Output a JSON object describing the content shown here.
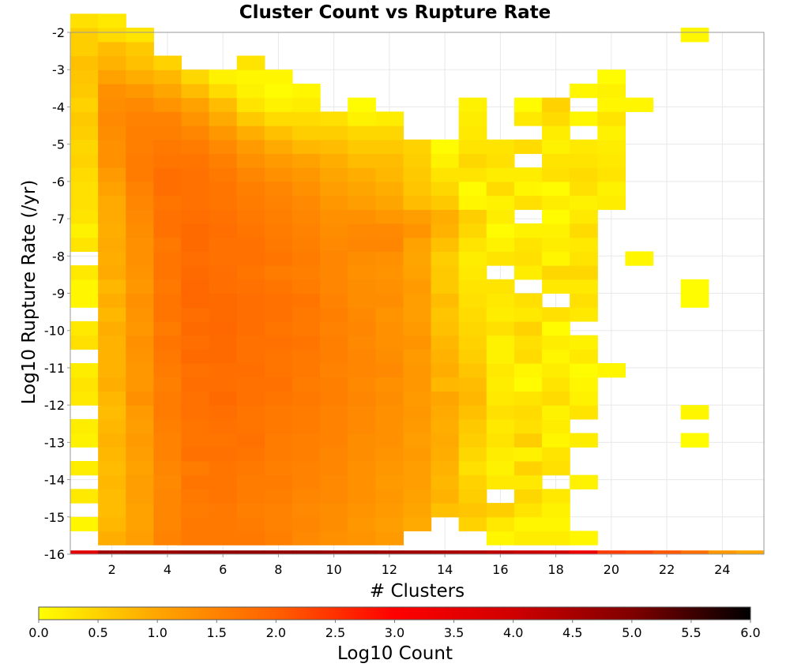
{
  "chart_data": {
    "type": "heatmap",
    "title": "Cluster Count vs Rupture Rate",
    "xlabel": "# Clusters",
    "ylabel": "Log10 Rupture Rate (/yr)",
    "xlim": [
      0.5,
      25.5
    ],
    "ylim": [
      -16,
      -2
    ],
    "xticks": [
      "2",
      "4",
      "6",
      "8",
      "10",
      "12",
      "14",
      "16",
      "18",
      "20",
      "22",
      "24"
    ],
    "yticks": [
      "-2",
      "-3",
      "-4",
      "-5",
      "-6",
      "-7",
      "-8",
      "-9",
      "-10",
      "-11",
      "-12",
      "-13",
      "-14",
      "-15",
      "-16"
    ],
    "grid": true,
    "colorbar": {
      "label": "Log10 Count",
      "range": [
        0,
        6
      ],
      "ticks": [
        "0.0",
        "0.5",
        "1.0",
        "1.5",
        "2.0",
        "2.5",
        "3.0",
        "3.5",
        "4.0",
        "4.5",
        "5.0",
        "5.5",
        "6.0"
      ],
      "colors": [
        "#ffff00",
        "#ffa500",
        "#ff6000",
        "#ff0000",
        "#d00000",
        "#800000",
        "#000000"
      ]
    },
    "bin_height": 0.375,
    "bin_width": 1,
    "columns": [
      {
        "x": 1,
        "y_start": -15.375,
        "values": [
          0.1,
          0,
          0.25,
          0,
          0.2,
          0,
          0.15,
          0.2,
          0,
          0.25,
          0.3,
          0.2,
          0,
          0.35,
          0.25,
          0,
          0.1,
          0.1,
          0.25,
          0,
          0.3,
          0.15,
          0.3,
          0.35,
          0.35,
          0.4,
          0.5,
          0.45,
          0.55,
          0.6,
          0.5,
          0.6,
          0.65,
          0.7,
          0.55,
          0.55,
          0.35
        ]
      },
      {
        "x": 2,
        "y_start": -15.75,
        "values": [
          0.9,
          0.8,
          0.75,
          0.75,
          0.8,
          0.75,
          0.8,
          0.85,
          0.8,
          0.75,
          0.8,
          0.9,
          0.85,
          0.85,
          0.85,
          0.9,
          0.8,
          0.9,
          0.8,
          0.95,
          0.9,
          0.95,
          0.9,
          0.95,
          0.95,
          1.05,
          1.15,
          1.3,
          1.3,
          1.35,
          1.4,
          1.35,
          1.3,
          1.05,
          0.85,
          0.75,
          0.4,
          0.25
        ]
      },
      {
        "x": 3,
        "y_start": -15.75,
        "values": [
          1.1,
          1.05,
          1.05,
          1.1,
          1.1,
          1.05,
          1.1,
          1.15,
          1.1,
          1.15,
          1.3,
          1.2,
          1.2,
          1.25,
          1.3,
          1.2,
          1.25,
          1.3,
          1.2,
          1.25,
          1.3,
          1.3,
          1.35,
          1.4,
          1.45,
          1.5,
          1.6,
          1.6,
          1.55,
          1.55,
          1.5,
          1.4,
          1.2,
          0.9,
          0.7,
          0.6,
          0.3
        ]
      },
      {
        "x": 4,
        "y_start": -15.75,
        "values": [
          1.5,
          1.45,
          1.45,
          1.45,
          1.4,
          1.45,
          1.5,
          1.5,
          1.55,
          1.6,
          1.6,
          1.55,
          1.6,
          1.65,
          1.7,
          1.6,
          1.7,
          1.7,
          1.65,
          1.7,
          1.7,
          1.65,
          1.75,
          1.75,
          1.7,
          1.8,
          1.8,
          1.7,
          1.65,
          1.55,
          1.5,
          1.25,
          1.0,
          0.8,
          0.5
        ]
      },
      {
        "x": 5,
        "y_start": -15.75,
        "values": [
          1.65,
          1.65,
          1.6,
          1.65,
          1.7,
          1.6,
          1.75,
          1.7,
          1.7,
          1.75,
          1.75,
          1.8,
          1.75,
          1.85,
          1.8,
          1.85,
          1.8,
          1.9,
          1.9,
          1.85,
          1.8,
          1.85,
          1.85,
          1.8,
          1.75,
          1.75,
          1.75,
          1.7,
          1.6,
          1.45,
          1.25,
          1.05,
          0.75,
          0.45
        ]
      },
      {
        "x": 6,
        "y_start": -15.75,
        "values": [
          1.65,
          1.65,
          1.65,
          1.7,
          1.7,
          1.7,
          1.75,
          1.7,
          1.75,
          1.8,
          1.85,
          1.8,
          1.8,
          1.85,
          1.85,
          1.9,
          1.85,
          1.85,
          1.8,
          1.8,
          1.75,
          1.75,
          1.8,
          1.75,
          1.7,
          1.7,
          1.65,
          1.55,
          1.4,
          1.2,
          0.95,
          0.75,
          0.4,
          0.15
        ]
      },
      {
        "x": 7,
        "y_start": -15.75,
        "values": [
          1.65,
          1.6,
          1.55,
          1.6,
          1.6,
          1.65,
          1.7,
          1.75,
          1.7,
          1.7,
          1.75,
          1.75,
          1.8,
          1.75,
          1.75,
          1.8,
          1.8,
          1.8,
          1.75,
          1.7,
          1.75,
          1.75,
          1.7,
          1.65,
          1.6,
          1.55,
          1.45,
          1.3,
          1.15,
          0.9,
          0.6,
          0.3,
          0.15,
          0.1,
          0.3
        ]
      },
      {
        "x": 8,
        "y_start": -15.75,
        "values": [
          1.55,
          1.5,
          1.5,
          1.55,
          1.6,
          1.55,
          1.6,
          1.6,
          1.65,
          1.65,
          1.7,
          1.75,
          1.7,
          1.7,
          1.75,
          1.7,
          1.75,
          1.75,
          1.7,
          1.6,
          1.7,
          1.65,
          1.6,
          1.55,
          1.5,
          1.45,
          1.3,
          1.15,
          0.95,
          0.7,
          0.4,
          0.15,
          0.05,
          0.1
        ]
      },
      {
        "x": 9,
        "y_start": -15.75,
        "values": [
          1.4,
          1.45,
          1.4,
          1.45,
          1.5,
          1.5,
          1.55,
          1.55,
          1.6,
          1.6,
          1.65,
          1.6,
          1.65,
          1.65,
          1.7,
          1.65,
          1.65,
          1.7,
          1.6,
          1.55,
          1.6,
          1.55,
          1.5,
          1.45,
          1.4,
          1.3,
          1.2,
          1.05,
          0.8,
          0.55,
          0.4,
          0.2,
          0.1
        ]
      },
      {
        "x": 10,
        "y_start": -15.75,
        "values": [
          1.3,
          1.35,
          1.35,
          1.4,
          1.4,
          1.45,
          1.45,
          1.5,
          1.5,
          1.5,
          1.55,
          1.55,
          1.5,
          1.55,
          1.55,
          1.5,
          1.55,
          1.5,
          1.45,
          1.45,
          1.45,
          1.4,
          1.35,
          1.3,
          1.2,
          1.1,
          1.0,
          0.9,
          0.75,
          0.55,
          0.35
        ]
      },
      {
        "x": 11,
        "y_start": -15.75,
        "values": [
          1.25,
          1.2,
          1.25,
          1.3,
          1.3,
          1.3,
          1.35,
          1.35,
          1.4,
          1.4,
          1.45,
          1.4,
          1.45,
          1.45,
          1.4,
          1.45,
          1.4,
          1.35,
          1.35,
          1.3,
          1.35,
          1.45,
          1.4,
          1.3,
          1.1,
          1.0,
          0.9,
          0.75,
          0.6,
          0.45,
          0.15,
          0.05
        ]
      },
      {
        "x": 12,
        "y_start": -15.75,
        "values": [
          1.15,
          1.1,
          1.15,
          1.2,
          1.15,
          1.2,
          1.25,
          1.3,
          1.3,
          1.3,
          1.35,
          1.3,
          1.4,
          1.35,
          1.3,
          1.3,
          1.25,
          1.35,
          1.3,
          1.25,
          1.3,
          1.45,
          1.4,
          1.2,
          1.0,
          0.9,
          0.8,
          0.75,
          0.6,
          0.45,
          0.2
        ]
      },
      {
        "x": 13,
        "y_start": -15.375,
        "values": [
          0.95,
          1.0,
          1.05,
          1.1,
          1.1,
          1.15,
          1.1,
          1.15,
          1.2,
          1.15,
          1.2,
          1.2,
          1.15,
          1.25,
          1.15,
          1.1,
          1.1,
          1.15,
          1.05,
          1.0,
          1.05,
          1.25,
          1.1,
          0.75,
          0.65,
          0.6,
          0.55,
          0.5
        ]
      },
      {
        "x": 14,
        "y_start": -15.0,
        "values": [
          0.7,
          0.85,
          0.8,
          0.85,
          0.9,
          0.95,
          0.9,
          0.95,
          1.0,
          0.8,
          0.9,
          0.85,
          0.8,
          0.7,
          0.65,
          0.75,
          0.6,
          0.6,
          0.55,
          0.7,
          0.85,
          0.9,
          0.6,
          0.45,
          0.3,
          0.15,
          0.05
        ]
      },
      {
        "x": 15,
        "y_start": -15.375,
        "values": [
          0.5,
          0.65,
          0.55,
          0.5,
          0.35,
          0.45,
          0.55,
          0.6,
          0.7,
          0.8,
          0.75,
          0.65,
          0.55,
          0.5,
          0.45,
          0.4,
          0.35,
          0.3,
          0.25,
          0.2,
          0.3,
          0.45,
          0.55,
          0.1,
          0.05,
          0.3,
          0.45,
          0.3,
          0.25,
          0.2,
          0.15
        ]
      },
      {
        "x": 16,
        "y_start": -15.75,
        "values": [
          0.1,
          0.25,
          0.55,
          0,
          0.25,
          0.15,
          0.2,
          0.3,
          0.25,
          0.35,
          0.25,
          0.2,
          0.25,
          0.15,
          0.15,
          0.35,
          0.2,
          0.25,
          0.3,
          0,
          0.3,
          0.15,
          0.05,
          0.2,
          0.15,
          0.4,
          0.2,
          0.35,
          0.3
        ]
      },
      {
        "x": 17,
        "y_start": -15.75,
        "values": [
          0.2,
          0.1,
          0.3,
          0.45,
          0.25,
          0.5,
          0.15,
          0.55,
          0.35,
          0.4,
          0.3,
          0.05,
          0.1,
          0.4,
          0.35,
          0.5,
          0.25,
          0.35,
          0,
          0.2,
          0.35,
          0.3,
          0.15,
          0,
          0.35,
          0.1,
          0.2,
          0,
          0.4,
          0,
          0.25,
          0.05
        ]
      },
      {
        "x": 18,
        "y_start": -15.75,
        "values": [
          0.2,
          0.1,
          0.15,
          0.25,
          0,
          0.35,
          0.3,
          0.1,
          0.2,
          0.15,
          0.4,
          0.3,
          0.2,
          0.1,
          0.2,
          0.05,
          0.35,
          0,
          0.25,
          0.45,
          0.1,
          0.2,
          0.15,
          0.05,
          0.2,
          0.05,
          0.35,
          0.3,
          0.15,
          0.2,
          0.4,
          0.5
        ]
      },
      {
        "x": 19,
        "y_start": -15.75,
        "values": [
          0.1,
          0,
          0,
          0,
          0.15,
          0,
          0,
          0.2,
          0,
          0.3,
          0.15,
          0.1,
          0.05,
          0.25,
          0.15,
          0,
          0.25,
          0.35,
          0.25,
          0.45,
          0.3,
          0.25,
          0.4,
          0.25,
          0.15,
          0.35,
          0.4,
          0.3,
          0.25,
          0,
          0.1,
          0,
          0.1
        ]
      },
      {
        "x": 20,
        "y_start": -11.25,
        "values": [
          0.1,
          0,
          0,
          0,
          0,
          0,
          0,
          0,
          0,
          0,
          0,
          0,
          0.2,
          0.15,
          0.3,
          0.25,
          0.2,
          0.15,
          0.3,
          0.1,
          0.15,
          0.05
        ]
      },
      {
        "x": 21,
        "y_start": -8.25,
        "values": [
          0.1,
          0,
          0,
          0,
          0,
          0,
          0,
          0,
          0,
          0,
          0,
          0.1
        ]
      },
      {
        "x": 23,
        "y_start": -13.125,
        "values": [
          0.05,
          0,
          0.1,
          0,
          0,
          0,
          0,
          0,
          0,
          0,
          0.05,
          0.05,
          0,
          0,
          0,
          0,
          0,
          0,
          0,
          0,
          0,
          0,
          0,
          0,
          0,
          0,
          0,
          0,
          0,
          0.1
        ]
      }
    ],
    "bottom_row": {
      "y": -15.9,
      "x": [
        1,
        2,
        3,
        4,
        5,
        6,
        7,
        8,
        9,
        10,
        11,
        12,
        13,
        14,
        15,
        16,
        17,
        18,
        19,
        20,
        21,
        22,
        23,
        24,
        25
      ],
      "values": [
        3.6,
        4.6,
        4.7,
        4.7,
        4.8,
        4.8,
        4.8,
        4.75,
        4.8,
        4.7,
        4.7,
        4.65,
        4.6,
        4.5,
        4.4,
        4.25,
        4.1,
        4.0,
        3.4,
        2.4,
        2.3,
        2.1,
        1.8,
        1.2,
        1.0
      ]
    }
  }
}
